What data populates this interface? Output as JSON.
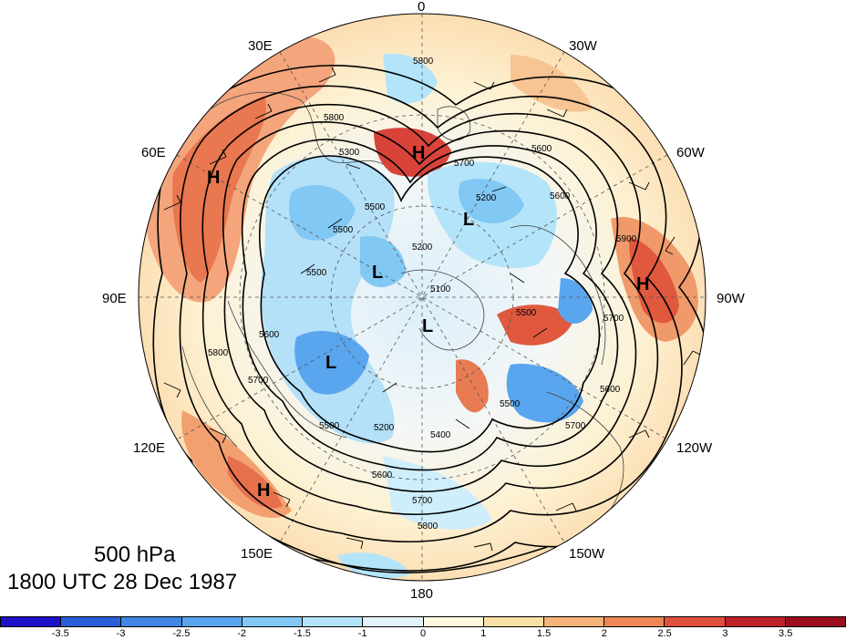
{
  "title": {
    "level": "500 hPa",
    "time": "1800 UTC 28 Dec 1987"
  },
  "longitude_labels": [
    "0",
    "30W",
    "60W",
    "90W",
    "120W",
    "150W",
    "180",
    "150E",
    "120E",
    "90E",
    "60E",
    "30E"
  ],
  "contour_labels": [
    "5800",
    "5800",
    "5700",
    "5600",
    "5500",
    "5200",
    "5100",
    "5200",
    "5300",
    "5500",
    "5600",
    "5700",
    "5800",
    "5900",
    "5600",
    "5700",
    "5400",
    "5500",
    "5600",
    "5700",
    "5800",
    "5700",
    "5500",
    "5500",
    "5600",
    "5200",
    "5500"
  ],
  "pressure_systems": [
    {
      "type": "H"
    },
    {
      "type": "H"
    },
    {
      "type": "H"
    },
    {
      "type": "H"
    },
    {
      "type": "L"
    },
    {
      "type": "L"
    },
    {
      "type": "L"
    },
    {
      "type": "L"
    }
  ],
  "colorbar": {
    "ticks": [
      "-3.5",
      "-3",
      "-2.5",
      "-2",
      "-1.5",
      "-1",
      "0",
      "1",
      "1.5",
      "2",
      "2.5",
      "3",
      "3.5"
    ],
    "colors": [
      "#1e12c8",
      "#2a5fd8",
      "#3f86e6",
      "#5aa6ee",
      "#82c8f4",
      "#b4e4fa",
      "#e2f4fb",
      "#fff8dc",
      "#fbe0a6",
      "#f6b47a",
      "#ef8656",
      "#e0503c",
      "#c02028",
      "#9a0e1e"
    ]
  },
  "colors": {
    "land_outline": "#404040",
    "contour": "#000000"
  }
}
